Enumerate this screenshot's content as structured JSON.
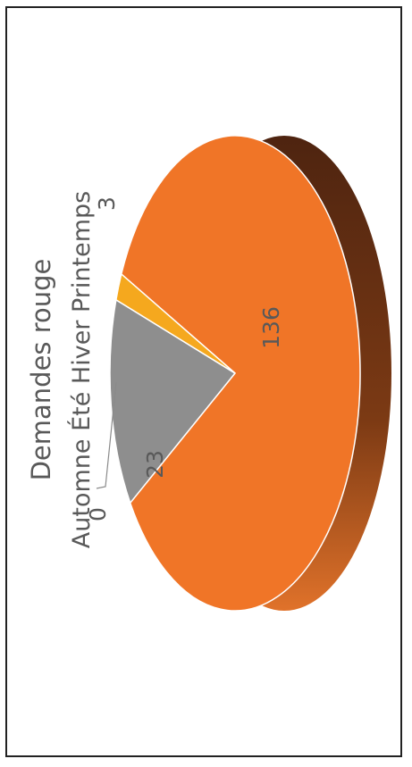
{
  "chart_data": {
    "type": "pie",
    "title": "Demandes rouge",
    "legend": {
      "entries": [
        "Automne",
        "Été",
        "Hiver",
        "Printemps"
      ],
      "text": "Automne Été Hiver Printemps"
    },
    "categories": [
      "Automne",
      "Été",
      "Hiver",
      "Printemps"
    ],
    "values": [
      0,
      23,
      136,
      3
    ],
    "data_labels": [
      "0",
      "23",
      "136",
      "3"
    ],
    "colors": [
      "#4a2a10",
      "#8e8e8e",
      "#f07527",
      "#f5a81e"
    ],
    "rotation": "rotated 90 degrees counter-clockwise",
    "style": "3d-pie"
  }
}
